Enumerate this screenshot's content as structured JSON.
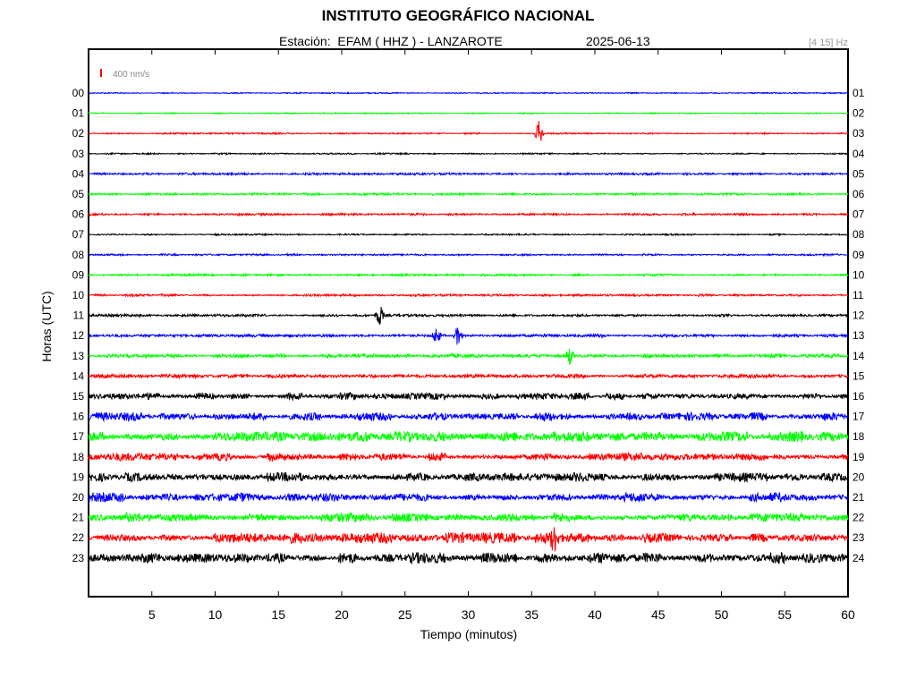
{
  "header": {
    "title": "INSTITUTO GEOGRÁFICO NACIONAL",
    "station": "Estación:  EFAM ( HHZ ) - LANZAROTE",
    "date": "2025-06-13",
    "filter": "[4 15] Hz"
  },
  "chart_data": {
    "type": "line",
    "title": "INSTITUTO GEOGRÁFICO NACIONAL",
    "xlabel": "Tiempo (minutos)",
    "ylabel": "Horas (UTC)",
    "xlim": [
      0,
      60
    ],
    "xticks": [
      5,
      10,
      15,
      20,
      25,
      30,
      35,
      40,
      45,
      50,
      55,
      60
    ],
    "left_hour_labels": [
      "00",
      "01",
      "02",
      "03",
      "04",
      "05",
      "06",
      "07",
      "08",
      "09",
      "10",
      "11",
      "12",
      "13",
      "14",
      "15",
      "16",
      "17",
      "18",
      "19",
      "20",
      "21",
      "22",
      "23"
    ],
    "right_hour_labels": [
      "01",
      "02",
      "03",
      "04",
      "05",
      "06",
      "07",
      "08",
      "09",
      "10",
      "11",
      "12",
      "13",
      "14",
      "15",
      "16",
      "17",
      "18",
      "19",
      "20",
      "21",
      "22",
      "23",
      "24"
    ],
    "scale_label": "400 nm/s",
    "colors": [
      "#0000ff",
      "#00ff00",
      "#ff0000",
      "#000000"
    ],
    "scale_color": "#ff0000",
    "trace_amplitude_rel": [
      0.3,
      0.3,
      0.4,
      0.4,
      0.6,
      0.6,
      0.6,
      0.4,
      0.5,
      0.6,
      0.6,
      0.7,
      0.8,
      1.0,
      1.0,
      1.3,
      1.6,
      2.0,
      1.6,
      1.7,
      1.7,
      1.8,
      2.0,
      2.0
    ],
    "events": [
      {
        "hour": "02",
        "minute": 35.6,
        "amplitude_rel": 3.0
      },
      {
        "hour": "11",
        "minute": 23.0,
        "amplitude_rel": 2.5
      },
      {
        "hour": "12",
        "minute": 27.5,
        "amplitude_rel": 2.0
      },
      {
        "hour": "12",
        "minute": 29.2,
        "amplitude_rel": 2.5
      },
      {
        "hour": "13",
        "minute": 38.0,
        "amplitude_rel": 2.0
      },
      {
        "hour": "22",
        "minute": 36.8,
        "amplitude_rel": 3.0
      }
    ]
  }
}
